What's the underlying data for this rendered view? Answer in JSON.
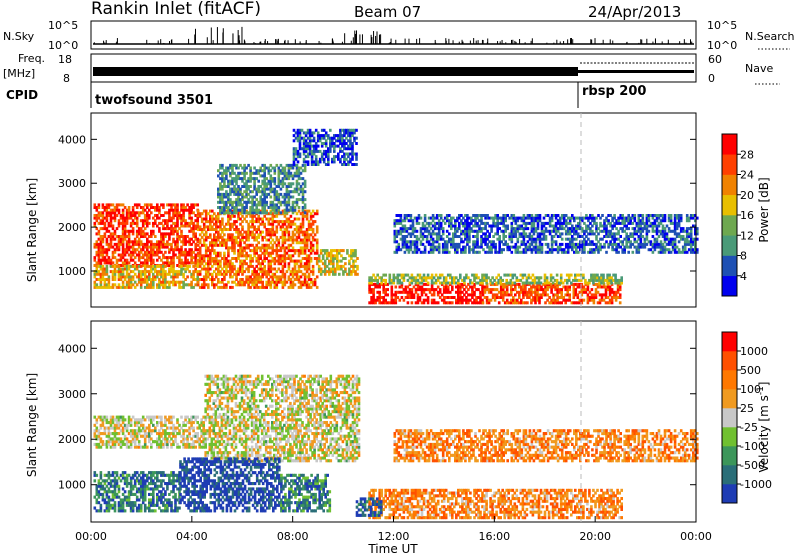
{
  "header": {
    "station": "Rankin Inlet (fitACF)",
    "beam": "Beam 07",
    "date": "24/Apr/2013"
  },
  "status_panel": {
    "nsky_label": "N.Sky",
    "nsky_ticks": [
      "10^5",
      "10^0"
    ],
    "nsearch_label": "N.Search",
    "nsearch_ticks": [
      "10^5",
      "10^0"
    ],
    "freq_label": "Freq.",
    "freq_unit": "[MHz]",
    "freq_ticks": [
      "18",
      "8"
    ],
    "nave_label": "Nave",
    "nave_ticks": [
      "60",
      "0"
    ],
    "cpid_label": "CPID",
    "cpid_segments": [
      {
        "name": "twofsound 3501",
        "start_hour": 0.0
      },
      {
        "name": "rbsp 200",
        "start_hour": 19.4
      }
    ]
  },
  "chart_data": [
    {
      "type": "heatmap",
      "parameter": "power",
      "ylabel": "Slant Range [km]",
      "xlabel": "",
      "xlim": [
        0,
        24
      ],
      "ylim": [
        180,
        4600
      ],
      "yticks": [
        1000,
        2000,
        3000,
        4000
      ],
      "colorbar": {
        "label": "Power [dB]",
        "tick_labels": [
          "4",
          "8",
          "12",
          "16",
          "20",
          "24",
          "28"
        ],
        "colors": [
          "#0000ee",
          "#1e50b4",
          "#4a9a78",
          "#6ea850",
          "#e8bf00",
          "#f08200",
          "#ff4000",
          "#ff0000"
        ]
      },
      "regions": [
        {
          "t0": 0.1,
          "t1": 4.2,
          "r0": 1100,
          "r1": 2500,
          "level": 0.85
        },
        {
          "t0": 0.1,
          "t1": 4.2,
          "r0": 600,
          "r1": 1100,
          "level": 0.6
        },
        {
          "t0": 4.2,
          "t1": 9.0,
          "r0": 600,
          "r1": 2400,
          "level": 0.75
        },
        {
          "t0": 9.0,
          "t1": 10.6,
          "r0": 900,
          "r1": 1500,
          "level": 0.55
        },
        {
          "t0": 11.0,
          "t1": 15.5,
          "r0": 250,
          "r1": 700,
          "level": 0.95
        },
        {
          "t0": 15.5,
          "t1": 21.0,
          "r0": 250,
          "r1": 700,
          "level": 0.8
        },
        {
          "t0": 11.0,
          "t1": 21.0,
          "r0": 700,
          "r1": 900,
          "level": 0.45
        },
        {
          "t0": 12.0,
          "t1": 24.0,
          "r0": 1400,
          "r1": 2300,
          "level": 0.2
        },
        {
          "t0": 5.0,
          "t1": 8.5,
          "r0": 2300,
          "r1": 3400,
          "level": 0.3
        },
        {
          "t0": 8.0,
          "t1": 10.5,
          "r0": 3400,
          "r1": 4200,
          "level": 0.15
        }
      ]
    },
    {
      "type": "heatmap",
      "parameter": "velocity",
      "ylabel": "Slant Range [km]",
      "xlabel": "Time UT",
      "xlim": [
        0,
        24
      ],
      "ylim": [
        180,
        4600
      ],
      "yticks": [
        1000,
        2000,
        3000,
        4000
      ],
      "x_tick_labels": [
        "00:00",
        "04:00",
        "08:00",
        "12:00",
        "16:00",
        "20:00",
        "00:00"
      ],
      "colorbar": {
        "label": "Velocity [m s",
        "label_superscript": "-1",
        "label_close": "]",
        "tick_labels": [
          "1000",
          "500",
          "100",
          "25",
          "-25",
          "-100",
          "-500",
          "-1000"
        ],
        "colors": [
          "#1e3cb4",
          "#2a6e78",
          "#3c965a",
          "#70c030",
          "#c8c8c8",
          "#f09a20",
          "#ff7800",
          "#ff5000",
          "#ff0000"
        ]
      },
      "regions": [
        {
          "t0": 0.1,
          "t1": 4.5,
          "r0": 1800,
          "r1": 2500,
          "level": 0.5
        },
        {
          "t0": 4.5,
          "t1": 10.6,
          "r0": 1500,
          "r1": 3400,
          "level": 0.5
        },
        {
          "t0": 0.1,
          "t1": 3.5,
          "r0": 400,
          "r1": 1300,
          "level": 0.2
        },
        {
          "t0": 3.5,
          "t1": 7.5,
          "r0": 400,
          "r1": 1600,
          "level": 0.05
        },
        {
          "t0": 7.5,
          "t1": 9.5,
          "r0": 400,
          "r1": 1200,
          "level": 0.2
        },
        {
          "t0": 11.0,
          "t1": 21.0,
          "r0": 250,
          "r1": 900,
          "level": 0.7
        },
        {
          "t0": 12.0,
          "t1": 24.0,
          "r0": 1500,
          "r1": 2200,
          "level": 0.7
        },
        {
          "t0": 10.5,
          "t1": 11.5,
          "r0": 300,
          "r1": 700,
          "level": 0.1
        }
      ]
    }
  ]
}
